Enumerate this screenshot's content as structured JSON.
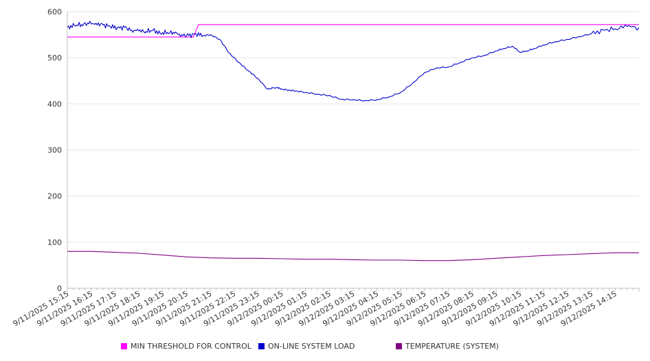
{
  "chart_data": {
    "type": "line",
    "ylim": [
      0,
      600
    ],
    "y_ticks": [
      "0",
      "100",
      "200",
      "300",
      "400",
      "500",
      "600"
    ],
    "x_tick_labels": [
      "9/11/2025 15:15",
      "9/11/2025 16:15",
      "9/11/2025 17:15",
      "9/11/2025 18:15",
      "9/11/2025 19:15",
      "9/11/2025 20:15",
      "9/11/2025 21:15",
      "9/11/2025 22:15",
      "9/11/2025 23:15",
      "9/12/2025 00:15",
      "9/12/2025 01:15",
      "9/12/2025 02:15",
      "9/12/2025 03:15",
      "9/12/2025 04:15",
      "9/12/2025 05:15",
      "9/12/2025 06:15",
      "9/12/2025 07:15",
      "9/12/2025 08:15",
      "9/12/2025 09:15",
      "9/12/2025 10:15",
      "9/12/2025 11:15",
      "9/12/2025 12:15",
      "9/12/2025 13:15",
      "9/12/2025 14:15"
    ],
    "x_range_hours": [
      0,
      24
    ],
    "grid": "horizontal",
    "legend_position": "bottom",
    "series": [
      {
        "name": "MIN THRESHOLD FOR CONTROL",
        "color": "#ff00ff",
        "x": [
          0,
          5.3,
          5.5,
          24
        ],
        "values": [
          545,
          545,
          572,
          572
        ]
      },
      {
        "name": "ON-LINE SYSTEM LOAD",
        "color": "#0000cc",
        "x": [
          0,
          0.3,
          0.6,
          0.9,
          1.2,
          1.5,
          1.8,
          2.1,
          2.4,
          2.7,
          3.0,
          3.3,
          3.6,
          3.9,
          4.2,
          4.5,
          4.8,
          5.1,
          5.4,
          5.7,
          6.0,
          6.4,
          6.8,
          7.2,
          7.6,
          8.0,
          8.4,
          8.8,
          9.0,
          9.3,
          9.6,
          10.0,
          10.5,
          11.0,
          11.5,
          12.0,
          12.5,
          13.0,
          13.5,
          14.0,
          14.5,
          15.0,
          15.5,
          16.0,
          16.5,
          17.0,
          17.5,
          18.0,
          18.3,
          18.7,
          19.0,
          19.3,
          19.6,
          20.0,
          20.5,
          21.0,
          21.5,
          22.0,
          22.5,
          23.0,
          23.5,
          24.0
        ],
        "values": [
          566,
          570,
          572,
          574,
          575,
          571,
          568,
          565,
          566,
          560,
          558,
          557,
          560,
          553,
          555,
          553,
          550,
          548,
          552,
          548,
          550,
          540,
          510,
          490,
          472,
          455,
          432,
          436,
          432,
          430,
          428,
          425,
          421,
          418,
          410,
          409,
          407,
          409,
          415,
          425,
          445,
          468,
          478,
          480,
          490,
          500,
          505,
          515,
          520,
          525,
          512,
          515,
          520,
          528,
          535,
          540,
          546,
          552,
          560,
          563,
          568,
          565
        ]
      },
      {
        "name": "TEMPERATURE (SYSTEM)",
        "color": "#800080",
        "x": [
          0,
          1,
          2,
          3,
          4,
          5,
          6,
          7,
          8,
          9,
          10,
          11,
          12,
          13,
          14,
          15,
          16,
          17,
          18,
          19,
          20,
          21,
          22,
          23,
          24
        ],
        "values": [
          80,
          80,
          78,
          76,
          72,
          68,
          66,
          65,
          65,
          64,
          63,
          63,
          62,
          61,
          61,
          60,
          60,
          62,
          65,
          68,
          71,
          73,
          75,
          77,
          77
        ]
      }
    ]
  }
}
